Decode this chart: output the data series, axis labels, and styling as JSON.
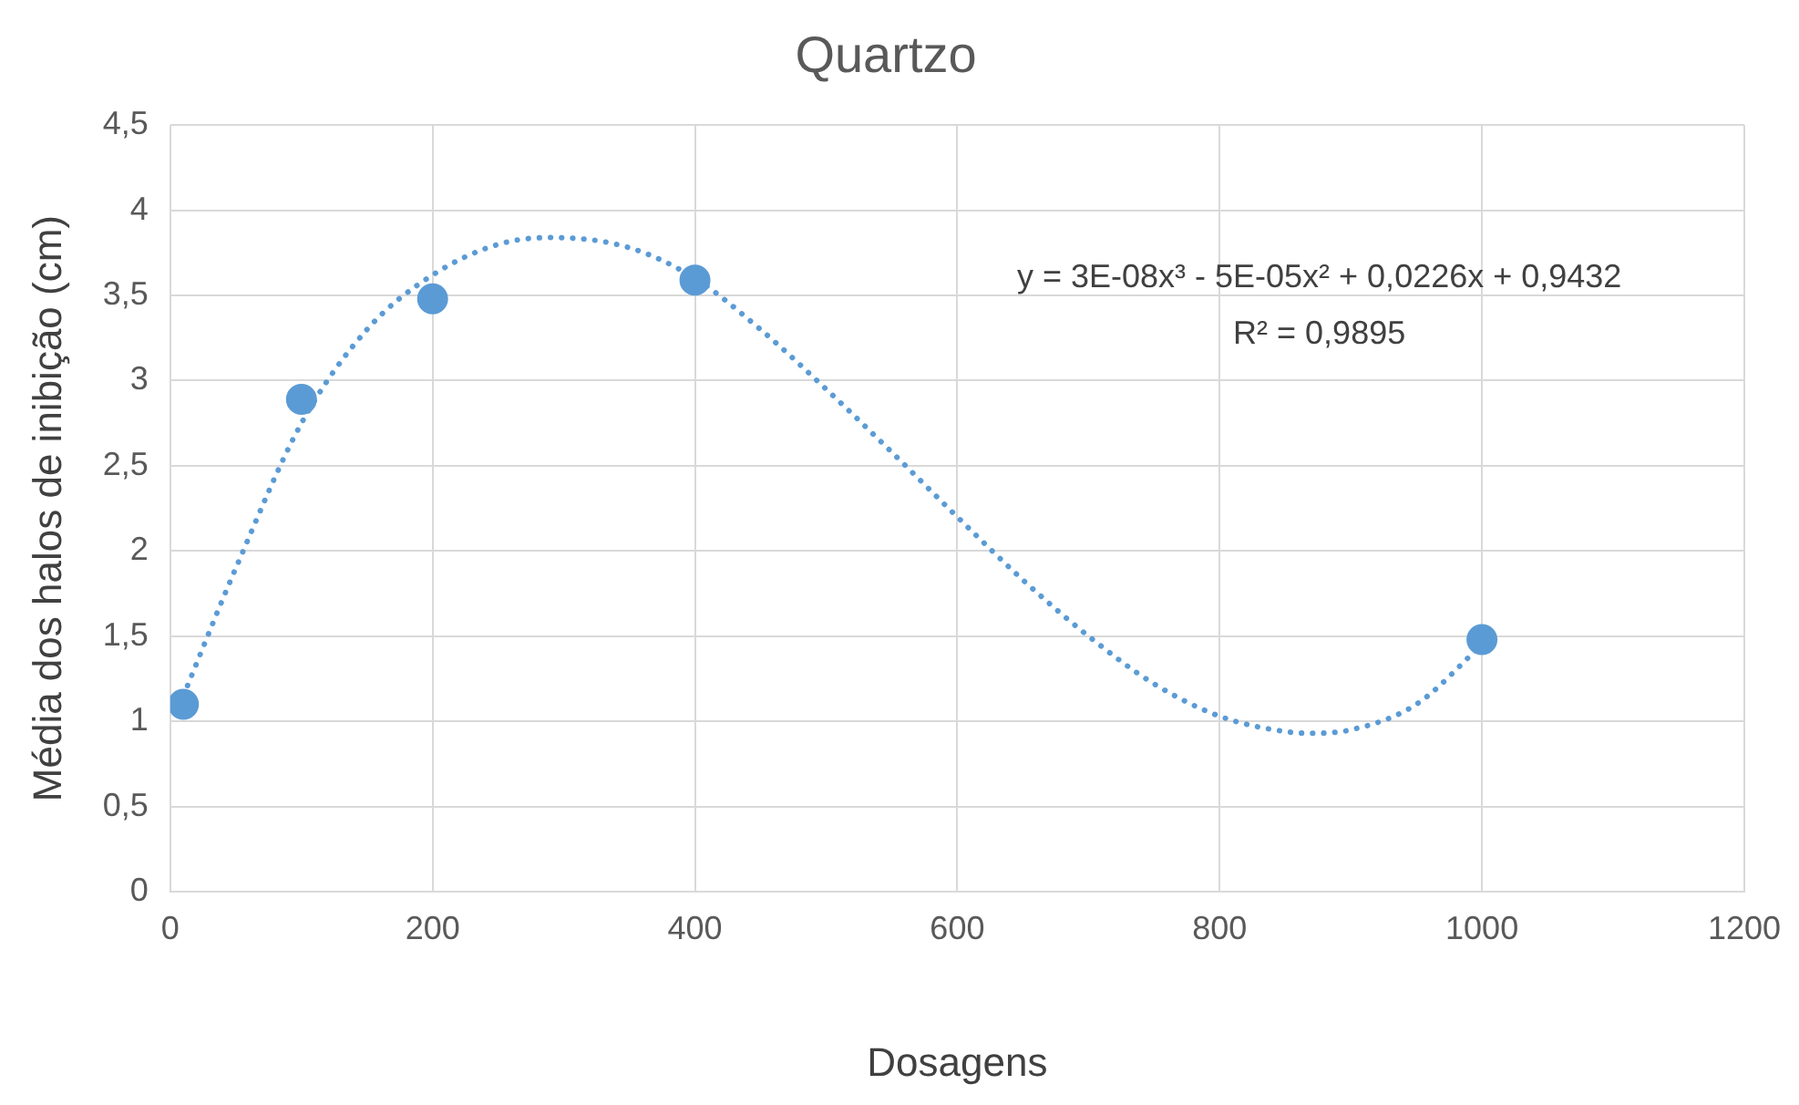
{
  "chart_data": {
    "type": "scatter",
    "title": "Quartzo",
    "xlabel": "Dosagens",
    "ylabel": "Média dos halos de inibição (cm)",
    "xlim": [
      0,
      1200
    ],
    "xticks": [
      0,
      200,
      400,
      600,
      800,
      1000,
      1200
    ],
    "ylim": [
      0,
      4.5
    ],
    "yticks": [
      0,
      {
        "value": 0.5,
        "label": "0,5"
      },
      1,
      {
        "value": 1.5,
        "label": "1,5"
      },
      2,
      {
        "value": 2.5,
        "label": "2,5"
      },
      3,
      {
        "value": 3.5,
        "label": "3,5"
      },
      4,
      {
        "value": 4.5,
        "label": "4,5"
      }
    ],
    "grid": true,
    "legend": false,
    "annotations": [
      "y = 3E-08x³ - 5E-05x² + 0,0226x + 0,9432",
      "R² = 0,9895"
    ],
    "series": [
      {
        "type": "scatter",
        "color": "#5b9bd5",
        "marker": "circle",
        "x": [
          10,
          100,
          200,
          400,
          1000
        ],
        "values": [
          1.1,
          2.89,
          3.48,
          3.59,
          1.48
        ]
      },
      {
        "type": "line",
        "color": "#5b9bd5",
        "marker": "none",
        "line_style": "dotted",
        "x": [
          10,
          50,
          100,
          150,
          200,
          250,
          290,
          350,
          400,
          450,
          500,
          550,
          600,
          650,
          700,
          750,
          800,
          850,
          870,
          900,
          950,
          1000
        ],
        "values": [
          1.15,
          1.9,
          2.75,
          3.3,
          3.62,
          3.8,
          3.84,
          3.78,
          3.6,
          3.3,
          2.95,
          2.58,
          2.2,
          1.83,
          1.5,
          1.22,
          1.03,
          0.94,
          0.93,
          0.95,
          1.1,
          1.45
        ]
      }
    ]
  }
}
